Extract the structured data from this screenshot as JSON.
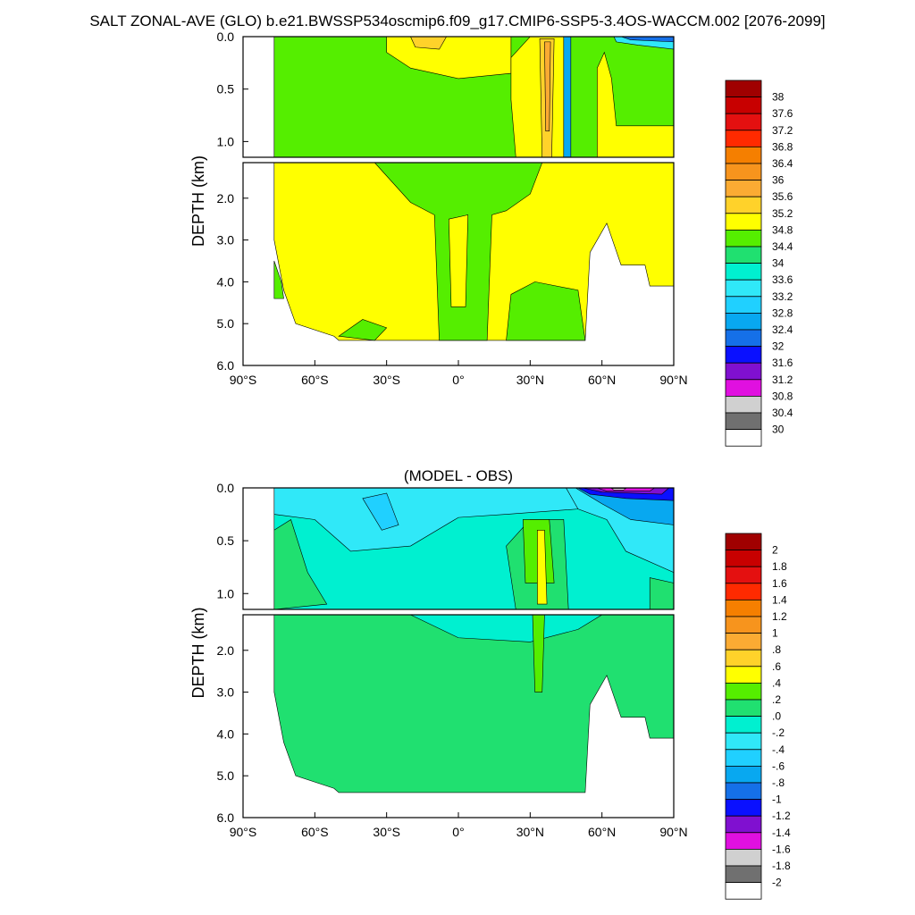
{
  "title": "SALT ZONAL-AVE (GLO) b.e21.BWSSP534oscmip6.f09_g17.CMIP6-SSP5-3.4OS-WACCM.002 [2076-2099]",
  "chart_data": [
    {
      "type": "heatmap",
      "title": "",
      "ylabel": "DEPTH (km)",
      "xlabel": "",
      "x_tick_labels": [
        "90°S",
        "60°S",
        "30°S",
        "0°",
        "30°N",
        "60°N",
        "90°N"
      ],
      "x_ticks": [
        -90,
        -60,
        -30,
        0,
        30,
        60,
        90
      ],
      "y_tick_labels_upper": [
        "0.0",
        "0.5",
        "1.0"
      ],
      "y_tick_labels_lower": [
        "2.0",
        "3.0",
        "4.0",
        "5.0",
        "6.0"
      ],
      "y_ticks_upper": [
        0,
        0.5,
        1.0
      ],
      "y_ticks_lower": [
        2,
        3,
        4,
        5,
        6
      ],
      "xlim": [
        -90,
        90
      ],
      "ylim_upper_km": [
        0,
        1.15
      ],
      "ylim_lower_km": [
        1.15,
        6.0
      ],
      "colorbar_labels": [
        "38",
        "37.6",
        "37.2",
        "36.8",
        "36.4",
        "36",
        "35.6",
        "35.2",
        "34.8",
        "34.4",
        "34",
        "33.6",
        "33.2",
        "32.8",
        "32.4",
        "32",
        "31.6",
        "31.2",
        "30.8",
        "30.4",
        "30"
      ],
      "colorbar_colors": [
        "#a00000",
        "#c80000",
        "#e41010",
        "#ff2a00",
        "#f57f00",
        "#f7941d",
        "#fbab33",
        "#ffd22a",
        "#ffff00",
        "#55ee00",
        "#20e070",
        "#00f0d0",
        "#30e8f8",
        "#20d0ff",
        "#08a8f0",
        "#1570e8",
        "#0a10ff",
        "#8010d0",
        "#e010e0",
        "#d0d0d0",
        "#707070",
        "#ffffff"
      ]
    },
    {
      "type": "heatmap",
      "title": "(MODEL - OBS)",
      "ylabel": "DEPTH (km)",
      "xlabel": "",
      "x_tick_labels": [
        "90°S",
        "60°S",
        "30°S",
        "0°",
        "30°N",
        "60°N",
        "90°N"
      ],
      "x_ticks": [
        -90,
        -60,
        -30,
        0,
        30,
        60,
        90
      ],
      "y_tick_labels_upper": [
        "0.0",
        "0.5",
        "1.0"
      ],
      "y_tick_labels_lower": [
        "2.0",
        "3.0",
        "4.0",
        "5.0",
        "6.0"
      ],
      "y_ticks_upper": [
        0,
        0.5,
        1.0
      ],
      "y_ticks_lower": [
        2,
        3,
        4,
        5,
        6
      ],
      "xlim": [
        -90,
        90
      ],
      "ylim_upper_km": [
        0,
        1.15
      ],
      "ylim_lower_km": [
        1.15,
        6.0
      ],
      "colorbar_labels": [
        "2",
        "1.8",
        "1.6",
        "1.4",
        "1.2",
        "1",
        ".8",
        ".6",
        ".4",
        ".2",
        ".0",
        "-.2",
        "-.4",
        "-.6",
        "-.8",
        "-1",
        "-1.2",
        "-1.4",
        "-1.6",
        "-1.8",
        "-2"
      ],
      "colorbar_colors": [
        "#a00000",
        "#c80000",
        "#e41010",
        "#ff2a00",
        "#f57f00",
        "#f7941d",
        "#fbab33",
        "#ffd22a",
        "#ffff00",
        "#55ee00",
        "#20e070",
        "#00f0d0",
        "#30e8f8",
        "#20d0ff",
        "#08a8f0",
        "#1570e8",
        "#0a10ff",
        "#8010d0",
        "#e010e0",
        "#d0d0d0",
        "#707070",
        "#ffffff"
      ]
    }
  ]
}
